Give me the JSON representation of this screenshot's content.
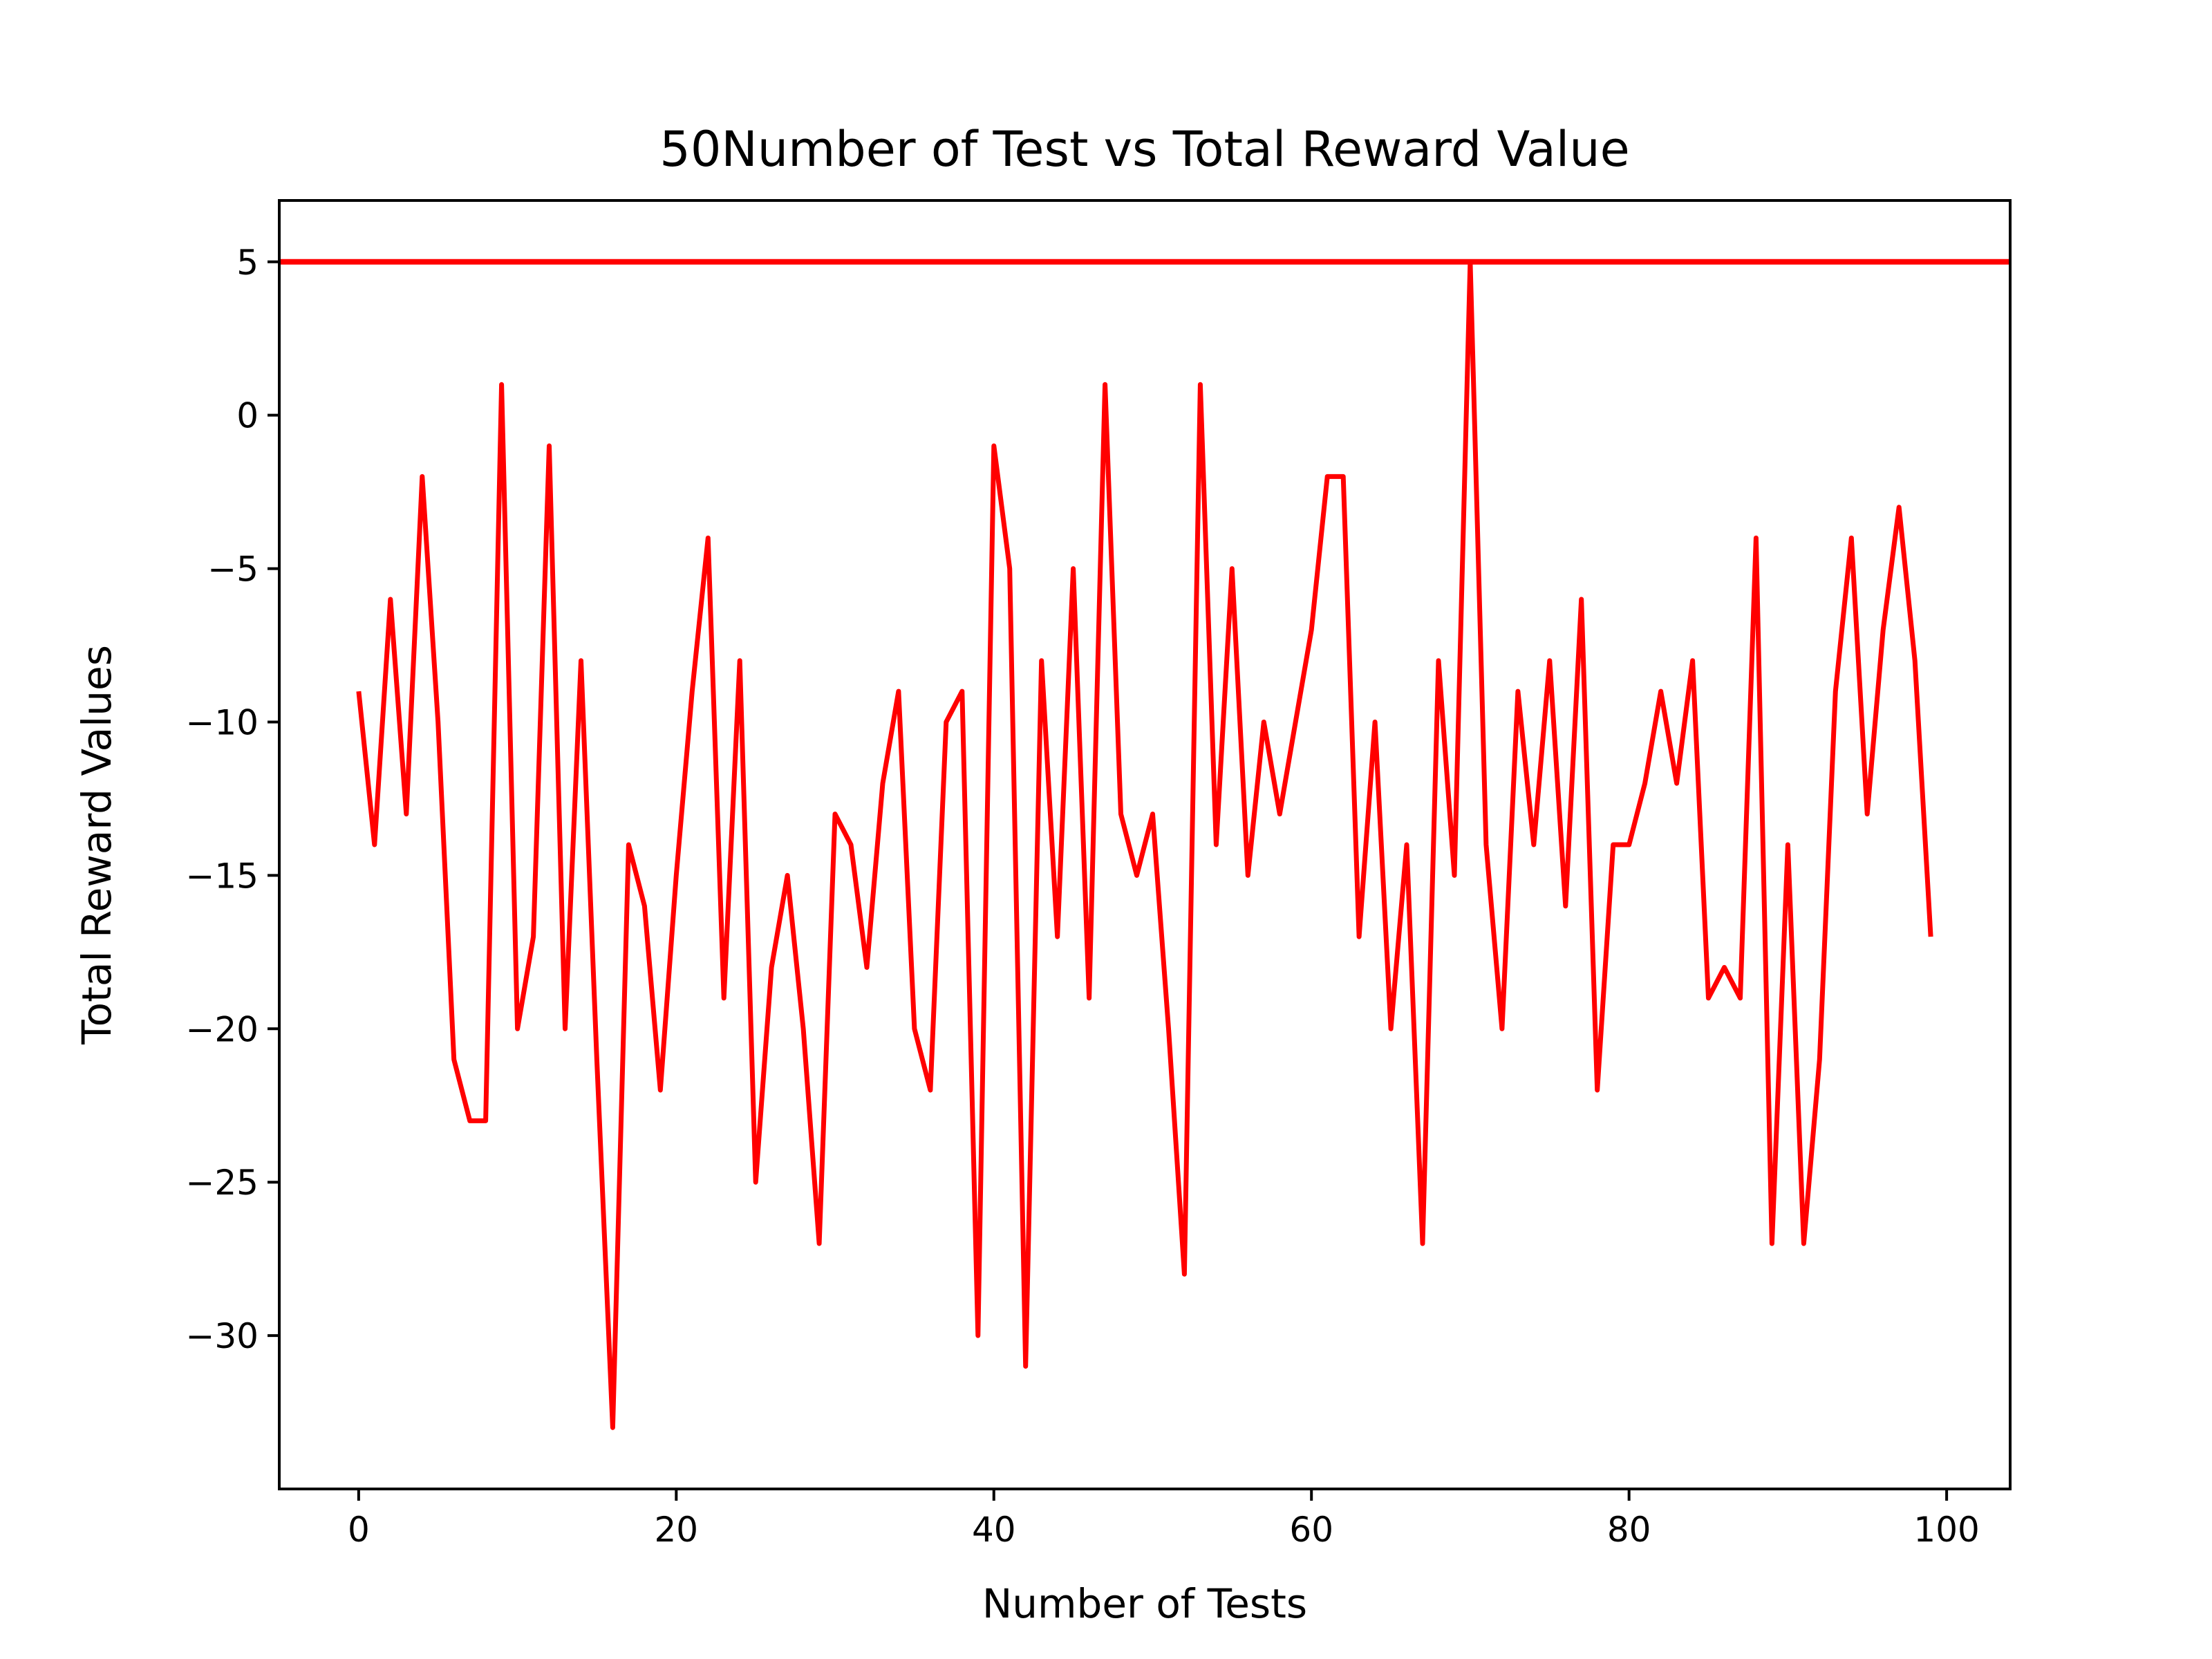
{
  "chart_data": {
    "type": "line",
    "title": "50Number of Test vs Total Reward Value",
    "xlabel": "Number of Tests",
    "ylabel": "Total Reward Values",
    "xlim": [
      -5,
      104
    ],
    "ylim": [
      -35,
      7
    ],
    "xticks": [
      0,
      20,
      40,
      60,
      80,
      100
    ],
    "yticks": [
      5,
      0,
      -5,
      -10,
      -15,
      -20,
      -25,
      -30
    ],
    "grid": false,
    "color": "#ff0000",
    "reference_line": {
      "y": 5
    },
    "series": [
      {
        "x": [
          0,
          1,
          2,
          3,
          4,
          5,
          6,
          7,
          8,
          9,
          10,
          11,
          12,
          13,
          14,
          15,
          16,
          17,
          18,
          19,
          20,
          21,
          22,
          23,
          24,
          25,
          26,
          27,
          28,
          29,
          30,
          31,
          32,
          33,
          34,
          35,
          36,
          37,
          38,
          39,
          40,
          41,
          42,
          43,
          44,
          45,
          46,
          47,
          48,
          49,
          50,
          51,
          52,
          53,
          54,
          55,
          56,
          57,
          58,
          59,
          60,
          61,
          62,
          63,
          64,
          65,
          66,
          67,
          68,
          69,
          70,
          71,
          72,
          73,
          74,
          75,
          76,
          77,
          78,
          79,
          80,
          81,
          82,
          83,
          84,
          85,
          86,
          87,
          88,
          89,
          90,
          91,
          92,
          93,
          94,
          95,
          96,
          97,
          98,
          99
        ],
        "values": [
          -9,
          -14,
          -6,
          -13,
          -2,
          -10,
          -21,
          -23,
          -23,
          1,
          -20,
          -17,
          -1,
          -20,
          -8,
          -21,
          -33,
          -14,
          -16,
          -22,
          -15,
          -9,
          -4,
          -19,
          -8,
          -25,
          -18,
          -15,
          -20,
          -27,
          -13,
          -14,
          -18,
          -12,
          -9,
          -20,
          -22,
          -10,
          -9,
          -30,
          -1,
          -5,
          -31,
          -8,
          -17,
          -5,
          -19,
          1,
          -13,
          -15,
          -13,
          -20,
          -28,
          1,
          -14,
          -5,
          -15,
          -10,
          -13,
          -10,
          -7,
          -2,
          -2,
          -17,
          -10,
          -20,
          -14,
          -27,
          -8,
          -15,
          5,
          -14,
          -20,
          -9,
          -14,
          -8,
          -16,
          -6,
          -22,
          -14,
          -14,
          -12,
          -9,
          -12,
          -8,
          -19,
          -18,
          -19,
          -4,
          -27,
          -14,
          -27,
          -21,
          -9,
          -4,
          -13,
          -7,
          -3,
          -8,
          -17
        ]
      }
    ]
  }
}
